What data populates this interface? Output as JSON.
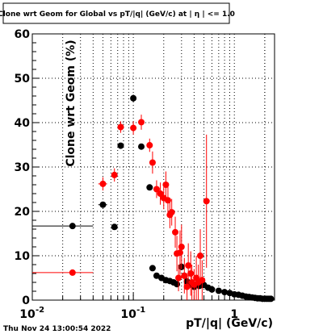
{
  "chart_data": {
    "type": "scatter",
    "title": "Clone wrt Geom for Global vs pT/|q| (GeV/c) at | η | <= 1.0",
    "xlabel": "pT/|q| (GeV/c)",
    "ylabel": "Clone wrt Geom (%)",
    "x_scale": "log",
    "xlim": [
      0.01,
      2.5
    ],
    "ylim": [
      0,
      60
    ],
    "grid": true,
    "x_tick_labels": [
      {
        "x": 0.01,
        "label": "10",
        "sup": "-2"
      },
      {
        "x": 0.1,
        "label": "10",
        "sup": "-1"
      },
      {
        "x": 1,
        "label": "1",
        "sup": ""
      }
    ],
    "y_ticks": [
      0,
      10,
      20,
      30,
      40,
      50,
      60
    ],
    "series": [
      {
        "color": "#000000",
        "points": [
          {
            "x": 0.025,
            "y": 16.7,
            "xlo": 0.01,
            "xhi": 0.04,
            "err": 0
          },
          {
            "x": 0.05,
            "y": 21.5,
            "xlo": 0.045,
            "xhi": 0.055,
            "err": 0
          },
          {
            "x": 0.065,
            "y": 16.5,
            "xlo": 0.062,
            "xhi": 0.068,
            "err": 0
          },
          {
            "x": 0.075,
            "y": 34.8,
            "xlo": 0.072,
            "xhi": 0.078,
            "err": 0
          },
          {
            "x": 0.1,
            "y": 45.5,
            "xlo": 0.095,
            "xhi": 0.105,
            "err": 0.8
          },
          {
            "x": 0.12,
            "y": 34.6,
            "xlo": 0.115,
            "xhi": 0.125,
            "err": 0
          },
          {
            "x": 0.145,
            "y": 25.4,
            "xlo": 0.14,
            "xhi": 0.15,
            "err": 0
          },
          {
            "x": 0.155,
            "y": 7.2,
            "err": 0
          },
          {
            "x": 0.17,
            "y": 5.5,
            "err": 0
          },
          {
            "x": 0.19,
            "y": 5.0,
            "err": 0
          },
          {
            "x": 0.21,
            "y": 4.5,
            "err": 0
          },
          {
            "x": 0.23,
            "y": 4.3,
            "err": 0
          },
          {
            "x": 0.25,
            "y": 4.0,
            "err": 0
          },
          {
            "x": 0.27,
            "y": 3.6,
            "err": 0
          },
          {
            "x": 0.3,
            "y": 7.5,
            "err": 0
          },
          {
            "x": 0.32,
            "y": 5.5,
            "err": 0
          },
          {
            "x": 0.34,
            "y": 4.2,
            "err": 0
          },
          {
            "x": 0.36,
            "y": 3.5,
            "err": 0
          },
          {
            "x": 0.4,
            "y": 3.0,
            "err": 0
          },
          {
            "x": 0.45,
            "y": 3.2,
            "err": 0
          },
          {
            "x": 0.5,
            "y": 3.4,
            "err": 0
          },
          {
            "x": 0.55,
            "y": 2.8,
            "err": 0
          },
          {
            "x": 0.6,
            "y": 2.4,
            "err": 0
          },
          {
            "x": 0.7,
            "y": 2.1,
            "err": 0
          },
          {
            "x": 0.8,
            "y": 1.8,
            "err": 0
          },
          {
            "x": 0.9,
            "y": 1.6,
            "err": 0
          },
          {
            "x": 1.0,
            "y": 1.3,
            "err": 0
          },
          {
            "x": 1.1,
            "y": 1.2,
            "err": 0
          },
          {
            "x": 1.2,
            "y": 1.0,
            "err": 0
          },
          {
            "x": 1.3,
            "y": 0.8,
            "err": 0
          },
          {
            "x": 1.4,
            "y": 0.7,
            "err": 0
          },
          {
            "x": 1.5,
            "y": 0.6,
            "err": 0
          },
          {
            "x": 1.6,
            "y": 0.5,
            "err": 0
          },
          {
            "x": 1.7,
            "y": 0.4,
            "err": 0
          },
          {
            "x": 1.8,
            "y": 0.4,
            "err": 0
          },
          {
            "x": 1.9,
            "y": 0.3,
            "err": 0
          },
          {
            "x": 2.0,
            "y": 0.3,
            "err": 0
          },
          {
            "x": 2.1,
            "y": 0.3,
            "err": 0
          },
          {
            "x": 2.2,
            "y": 0.3,
            "err": 0
          },
          {
            "x": 2.3,
            "y": 0.3,
            "err": 0
          }
        ]
      },
      {
        "color": "#ff0000",
        "points": [
          {
            "x": 0.025,
            "y": 6.2,
            "xlo": 0.01,
            "xhi": 0.04,
            "err": 0
          },
          {
            "x": 0.05,
            "y": 26.2,
            "xlo": 0.045,
            "xhi": 0.055,
            "err": 1.5
          },
          {
            "x": 0.065,
            "y": 28.2,
            "xlo": 0.062,
            "xhi": 0.068,
            "err": 1.5
          },
          {
            "x": 0.075,
            "y": 39.0,
            "xlo": 0.072,
            "xhi": 0.078,
            "err": 1.3
          },
          {
            "x": 0.1,
            "y": 38.8,
            "xlo": 0.095,
            "xhi": 0.105,
            "err": 1.5
          },
          {
            "x": 0.12,
            "y": 40.1,
            "xlo": 0.115,
            "xhi": 0.125,
            "err": 1.7
          },
          {
            "x": 0.145,
            "y": 34.9,
            "xlo": 0.14,
            "xhi": 0.15,
            "err": 1.5
          },
          {
            "x": 0.155,
            "y": 31.0,
            "err": 2.5
          },
          {
            "x": 0.17,
            "y": 25.0,
            "err": 2.0
          },
          {
            "x": 0.185,
            "y": 24.0,
            "err": 2.5
          },
          {
            "x": 0.2,
            "y": 23.0,
            "err": 2.5
          },
          {
            "x": 0.21,
            "y": 26.0,
            "err": 3.0
          },
          {
            "x": 0.22,
            "y": 22.5,
            "err": 3.0
          },
          {
            "x": 0.23,
            "y": 19.2,
            "err": 3.0
          },
          {
            "x": 0.24,
            "y": 19.8,
            "err": 3.0
          },
          {
            "x": 0.26,
            "y": 15.3,
            "err": 3.5
          },
          {
            "x": 0.27,
            "y": 10.5,
            "err": 4.0
          },
          {
            "x": 0.28,
            "y": 5.0,
            "err": 3.0
          },
          {
            "x": 0.29,
            "y": 10.7,
            "err": 5.0
          },
          {
            "x": 0.3,
            "y": 12.0,
            "err": 5.0
          },
          {
            "x": 0.32,
            "y": 5.5,
            "err": 4.0
          },
          {
            "x": 0.34,
            "y": 3.0,
            "err": 3.0
          },
          {
            "x": 0.35,
            "y": 7.8,
            "err": 5.0
          },
          {
            "x": 0.37,
            "y": 6.0,
            "err": 5.0
          },
          {
            "x": 0.38,
            "y": 4.0,
            "err": 4.0
          },
          {
            "x": 0.4,
            "y": 3.5,
            "err": 3.5
          },
          {
            "x": 0.42,
            "y": 5.0,
            "err": 5.0
          },
          {
            "x": 0.44,
            "y": 4.0,
            "err": 4.0
          },
          {
            "x": 0.46,
            "y": 10.0,
            "err": 6.0
          },
          {
            "x": 0.48,
            "y": 4.5,
            "err": 4.5
          },
          {
            "x": 0.53,
            "y": 22.3,
            "err": 15.0
          }
        ]
      }
    ]
  },
  "timestamp": "Thu Nov 24 13:00:54 2022"
}
